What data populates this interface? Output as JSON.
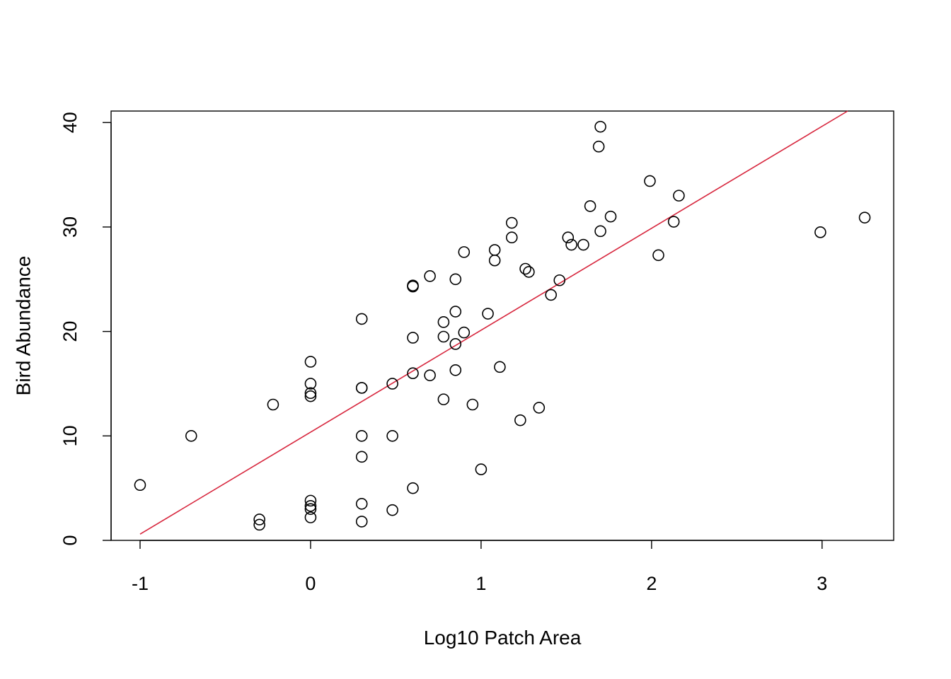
{
  "chart_data": {
    "type": "scatter",
    "title": "",
    "xlabel": "Log10 Patch Area",
    "ylabel": "Bird Abundance",
    "xlim": [
      -1.17,
      3.42
    ],
    "ylim": [
      0,
      41.1
    ],
    "xticks": [
      -1,
      0,
      1,
      2,
      3
    ],
    "yticks": [
      0,
      10,
      20,
      30,
      40
    ],
    "grid": false,
    "colors": {
      "points": "#000000",
      "fit_line": "#d7263d"
    },
    "points": [
      [
        -1.0,
        5.3
      ],
      [
        -0.7,
        10.0
      ],
      [
        -0.3,
        2.0
      ],
      [
        -0.3,
        1.5
      ],
      [
        -0.22,
        13.0
      ],
      [
        0.0,
        17.1
      ],
      [
        0.0,
        15.0
      ],
      [
        0.0,
        14.1
      ],
      [
        0.0,
        13.8
      ],
      [
        0.0,
        3.8
      ],
      [
        0.0,
        3.3
      ],
      [
        0.0,
        3.0
      ],
      [
        0.0,
        2.2
      ],
      [
        0.3,
        21.2
      ],
      [
        0.3,
        14.6
      ],
      [
        0.3,
        14.6
      ],
      [
        0.3,
        10.0
      ],
      [
        0.3,
        8.0
      ],
      [
        0.3,
        3.5
      ],
      [
        0.3,
        1.8
      ],
      [
        0.48,
        15.0
      ],
      [
        0.48,
        10.0
      ],
      [
        0.48,
        2.9
      ],
      [
        0.6,
        24.4
      ],
      [
        0.6,
        24.3
      ],
      [
        0.6,
        19.4
      ],
      [
        0.6,
        16.0
      ],
      [
        0.6,
        5.0
      ],
      [
        0.7,
        25.3
      ],
      [
        0.7,
        15.8
      ],
      [
        0.78,
        20.9
      ],
      [
        0.78,
        19.5
      ],
      [
        0.78,
        13.5
      ],
      [
        0.85,
        25.0
      ],
      [
        0.85,
        21.9
      ],
      [
        0.85,
        18.8
      ],
      [
        0.85,
        16.3
      ],
      [
        0.9,
        27.6
      ],
      [
        0.9,
        19.9
      ],
      [
        0.95,
        13.0
      ],
      [
        1.0,
        6.8
      ],
      [
        1.04,
        21.7
      ],
      [
        1.08,
        27.8
      ],
      [
        1.08,
        26.8
      ],
      [
        1.11,
        16.6
      ],
      [
        1.18,
        30.4
      ],
      [
        1.18,
        29.0
      ],
      [
        1.23,
        11.5
      ],
      [
        1.26,
        26.0
      ],
      [
        1.28,
        25.7
      ],
      [
        1.34,
        12.7
      ],
      [
        1.41,
        23.5
      ],
      [
        1.46,
        24.9
      ],
      [
        1.51,
        29.0
      ],
      [
        1.53,
        28.3
      ],
      [
        1.6,
        28.3
      ],
      [
        1.64,
        32.0
      ],
      [
        1.69,
        37.7
      ],
      [
        1.7,
        39.6
      ],
      [
        1.7,
        29.6
      ],
      [
        1.76,
        31.0
      ],
      [
        1.99,
        34.4
      ],
      [
        2.04,
        27.3
      ],
      [
        2.13,
        30.5
      ],
      [
        2.16,
        33.0
      ],
      [
        2.99,
        29.5
      ],
      [
        3.25,
        30.9
      ]
    ],
    "fit_line": {
      "x": [
        -1.0,
        3.15
      ],
      "y": [
        0.6,
        41.1
      ]
    }
  }
}
